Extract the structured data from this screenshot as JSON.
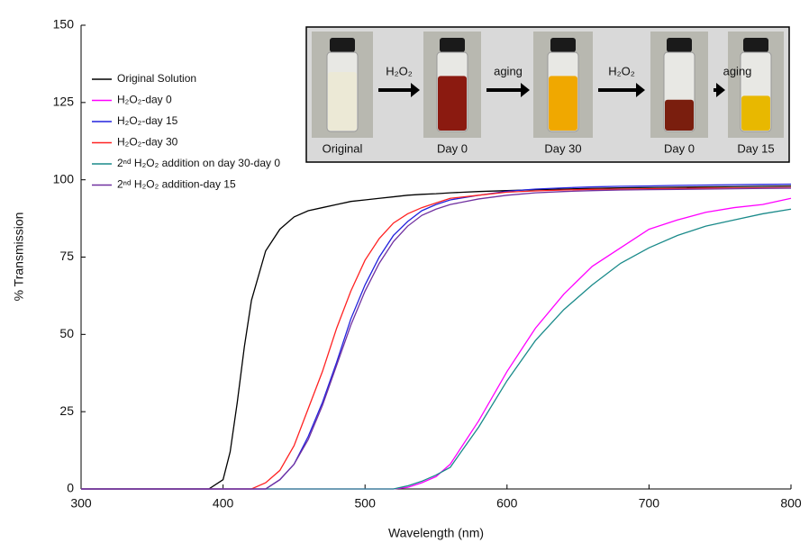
{
  "chart_data": {
    "type": "line",
    "xlabel": "Wavelength (nm)",
    "ylabel": "% Transmission",
    "x": [
      300,
      390,
      400,
      405,
      410,
      415,
      420,
      430,
      440,
      450,
      460,
      470,
      480,
      490,
      500,
      510,
      520,
      530,
      540,
      550,
      560,
      580,
      600,
      620,
      640,
      660,
      680,
      700,
      720,
      740,
      760,
      780,
      800
    ],
    "series": [
      {
        "name": "Original Solution",
        "color": "#000000",
        "values": [
          0,
          0,
          3,
          12,
          28,
          46,
          61,
          77,
          84,
          88,
          90,
          91,
          92,
          93,
          93.5,
          94,
          94.5,
          95,
          95.3,
          95.5,
          95.8,
          96.2,
          96.5,
          96.8,
          97,
          97.2,
          97.4,
          97.5,
          97.6,
          97.7,
          97.8,
          97.9,
          98
        ]
      },
      {
        "name": "H₂O₂-day 0",
        "color": "#ff00ff",
        "values": [
          0,
          0,
          0,
          0,
          0,
          0,
          0,
          0,
          0,
          0,
          0,
          0,
          0,
          0,
          0,
          0,
          0,
          0.5,
          2,
          4,
          8,
          22,
          38,
          52,
          63,
          72,
          78,
          84,
          87,
          89.5,
          91,
          92,
          94
        ]
      },
      {
        "name": "H₂O₂-day 15",
        "color": "#2222dd",
        "values": [
          0,
          0,
          0,
          0,
          0,
          0,
          0,
          0,
          3,
          8,
          17,
          28,
          41,
          55,
          66,
          75,
          82,
          86.5,
          90,
          92,
          93.5,
          95,
          96.3,
          97,
          97.4,
          97.7,
          97.9,
          98,
          98.2,
          98.3,
          98.4,
          98.5,
          98.6
        ]
      },
      {
        "name": "H₂O₂-day 30",
        "color": "#ff2222",
        "values": [
          0,
          0,
          0,
          0,
          0,
          0,
          0,
          2,
          6,
          14,
          26,
          38,
          52,
          64,
          74,
          81,
          86,
          89,
          91,
          92.5,
          94,
          95,
          96,
          96.4,
          96.7,
          96.9,
          97,
          97.1,
          97.2,
          97.3,
          97.3,
          97.4,
          97.5
        ]
      },
      {
        "name": "2ⁿᵈ H₂O₂ addition on day 30-day 0",
        "color": "#1a8a8a",
        "values": [
          0,
          0,
          0,
          0,
          0,
          0,
          0,
          0,
          0,
          0,
          0,
          0,
          0,
          0,
          0,
          0,
          0,
          1,
          2.5,
          4.5,
          7,
          20,
          35,
          48,
          58,
          66,
          73,
          78,
          82,
          85,
          87,
          89,
          90.5
        ]
      },
      {
        "name": "2ⁿᵈ H₂O₂ addition-day 15",
        "color": "#7030a0",
        "values": [
          0,
          0,
          0,
          0,
          0,
          0,
          0,
          0,
          3,
          8,
          16,
          27,
          40,
          53,
          64,
          73,
          80,
          85,
          88.5,
          90.5,
          92,
          93.8,
          95,
          95.8,
          96.2,
          96.5,
          96.7,
          96.8,
          96.9,
          97,
          97.1,
          97.2,
          97.3
        ]
      }
    ],
    "xlim": [
      300,
      800
    ],
    "xticks": [
      300,
      400,
      500,
      600,
      700,
      800
    ],
    "ylim": [
      0,
      150
    ],
    "yticks": [
      0,
      25,
      50,
      75,
      100,
      125,
      150
    ],
    "grid": false,
    "legend": "upper left",
    "inset": {
      "photo_labels": [
        "Original",
        "Day 0",
        "Day 30",
        "Day 0",
        "Day 15"
      ],
      "arrow_labels": [
        "H₂O₂",
        "aging",
        "H₂O₂",
        "aging"
      ]
    }
  }
}
